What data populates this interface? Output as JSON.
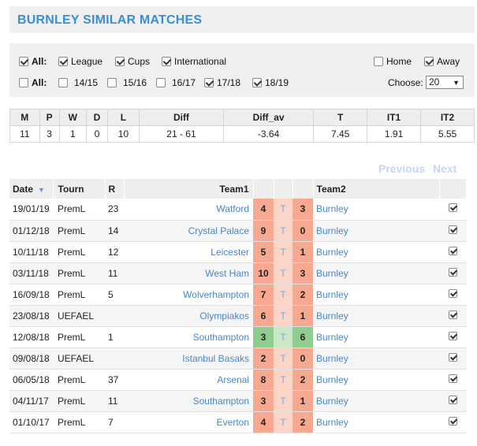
{
  "header": {
    "title": "BURNLEY SIMILAR MATCHES"
  },
  "filters": {
    "row1": [
      {
        "label": "All:",
        "checked": true,
        "bold": true
      },
      {
        "label": "League",
        "checked": true
      },
      {
        "label": "Cups",
        "checked": true
      },
      {
        "label": "International",
        "checked": true
      }
    ],
    "row2": [
      {
        "label": "All:",
        "checked": false,
        "bold": true
      },
      {
        "label": "14/15",
        "checked": false
      },
      {
        "label": "15/16",
        "checked": false
      },
      {
        "label": "16/17",
        "checked": false
      },
      {
        "label": "17/18",
        "checked": true
      },
      {
        "label": "18/19",
        "checked": true
      }
    ],
    "home": {
      "label": "Home",
      "checked": false
    },
    "away": {
      "label": "Away",
      "checked": true
    },
    "choose_label": "Choose:",
    "choose_value": "20"
  },
  "stats": {
    "headers": [
      "M",
      "P",
      "W",
      "D",
      "L",
      "Diff",
      "Diff_av",
      "T",
      "IT1",
      "IT2"
    ],
    "values": [
      "11",
      "3",
      "1",
      "0",
      "10",
      "21 - 61",
      "-3.64",
      "7.45",
      "1.91",
      "5.55"
    ]
  },
  "pager": {
    "previous": "Previous",
    "next": "Next"
  },
  "matches": {
    "headers": {
      "date": "Date",
      "tourn": "Tourn",
      "r": "R",
      "team1": "Team1",
      "team2": "Team2",
      "t": "T"
    },
    "rows": [
      {
        "date": "19/01/19",
        "tourn": "PremL",
        "r": "23",
        "team1": "Watford",
        "s1": "4",
        "s2": "3",
        "team2": "Burnley",
        "color": "red"
      },
      {
        "date": "01/12/18",
        "tourn": "PremL",
        "r": "14",
        "team1": "Crystal Palace",
        "s1": "9",
        "s2": "0",
        "team2": "Burnley",
        "color": "red"
      },
      {
        "date": "10/11/18",
        "tourn": "PremL",
        "r": "12",
        "team1": "Leicester",
        "s1": "5",
        "s2": "1",
        "team2": "Burnley",
        "color": "red"
      },
      {
        "date": "03/11/18",
        "tourn": "PremL",
        "r": "11",
        "team1": "West Ham",
        "s1": "10",
        "s2": "3",
        "team2": "Burnley",
        "color": "red"
      },
      {
        "date": "16/09/18",
        "tourn": "PremL",
        "r": "5",
        "team1": "Wolverhampton",
        "s1": "7",
        "s2": "2",
        "team2": "Burnley",
        "color": "red"
      },
      {
        "date": "23/08/18",
        "tourn": "UEFAEL",
        "r": "",
        "team1": "Olympiakos",
        "s1": "6",
        "s2": "1",
        "team2": "Burnley",
        "color": "red"
      },
      {
        "date": "12/08/18",
        "tourn": "PremL",
        "r": "1",
        "team1": "Southampton",
        "s1": "3",
        "s2": "6",
        "team2": "Burnley",
        "color": "green"
      },
      {
        "date": "09/08/18",
        "tourn": "UEFAEL",
        "r": "",
        "team1": "Istanbul Basaks",
        "s1": "2",
        "s2": "0",
        "team2": "Burnley",
        "color": "red"
      },
      {
        "date": "06/05/18",
        "tourn": "PremL",
        "r": "37",
        "team1": "Arsenal",
        "s1": "8",
        "s2": "2",
        "team2": "Burnley",
        "color": "red"
      },
      {
        "date": "04/11/17",
        "tourn": "PremL",
        "r": "11",
        "team1": "Southampton",
        "s1": "3",
        "s2": "1",
        "team2": "Burnley",
        "color": "red"
      },
      {
        "date": "01/10/17",
        "tourn": "PremL",
        "r": "7",
        "team1": "Everton",
        "s1": "4",
        "s2": "2",
        "team2": "Burnley",
        "color": "red"
      }
    ]
  }
}
